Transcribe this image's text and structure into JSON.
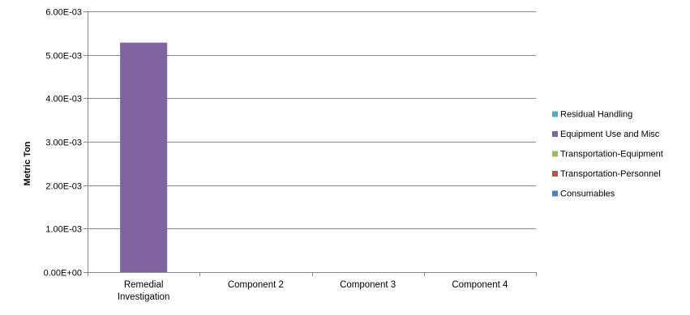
{
  "chart_data": {
    "type": "bar",
    "stacked": true,
    "title": "",
    "xlabel": "",
    "ylabel": "Metric Ton",
    "ylim": [
      0,
      0.006
    ],
    "yticks": [
      {
        "value": 0,
        "label": "0.00E+00"
      },
      {
        "value": 0.001,
        "label": "1.00E-03"
      },
      {
        "value": 0.002,
        "label": "2.00E-03"
      },
      {
        "value": 0.003,
        "label": "3.00E-03"
      },
      {
        "value": 0.004,
        "label": "4.00E-03"
      },
      {
        "value": 0.005,
        "label": "5.00E-03"
      },
      {
        "value": 0.006,
        "label": "6.00E-03"
      }
    ],
    "categories": [
      [
        "Remedial",
        "Investigation"
      ],
      [
        "Component 2"
      ],
      [
        "Component 3"
      ],
      [
        "Component 4"
      ]
    ],
    "grid": true,
    "legend_position": "right",
    "series": [
      {
        "name": "Consumables",
        "color": "#4F81BD",
        "values": [
          0,
          0,
          0,
          0
        ]
      },
      {
        "name": "Transportation-Personnel",
        "color": "#C0504D",
        "values": [
          0,
          0,
          0,
          0
        ]
      },
      {
        "name": "Transportation-Equipment",
        "color": "#9BBB59",
        "values": [
          0,
          0,
          0,
          0
        ]
      },
      {
        "name": "Equipment Use and Misc",
        "color": "#8064A2",
        "values": [
          0.00528,
          0,
          0,
          0
        ]
      },
      {
        "name": "Residual Handling",
        "color": "#4BACC6",
        "values": [
          0,
          0,
          0,
          0
        ]
      }
    ],
    "legend_order": [
      "Residual Handling",
      "Equipment Use and Misc",
      "Transportation-Equipment",
      "Transportation-Personnel",
      "Consumables"
    ]
  }
}
